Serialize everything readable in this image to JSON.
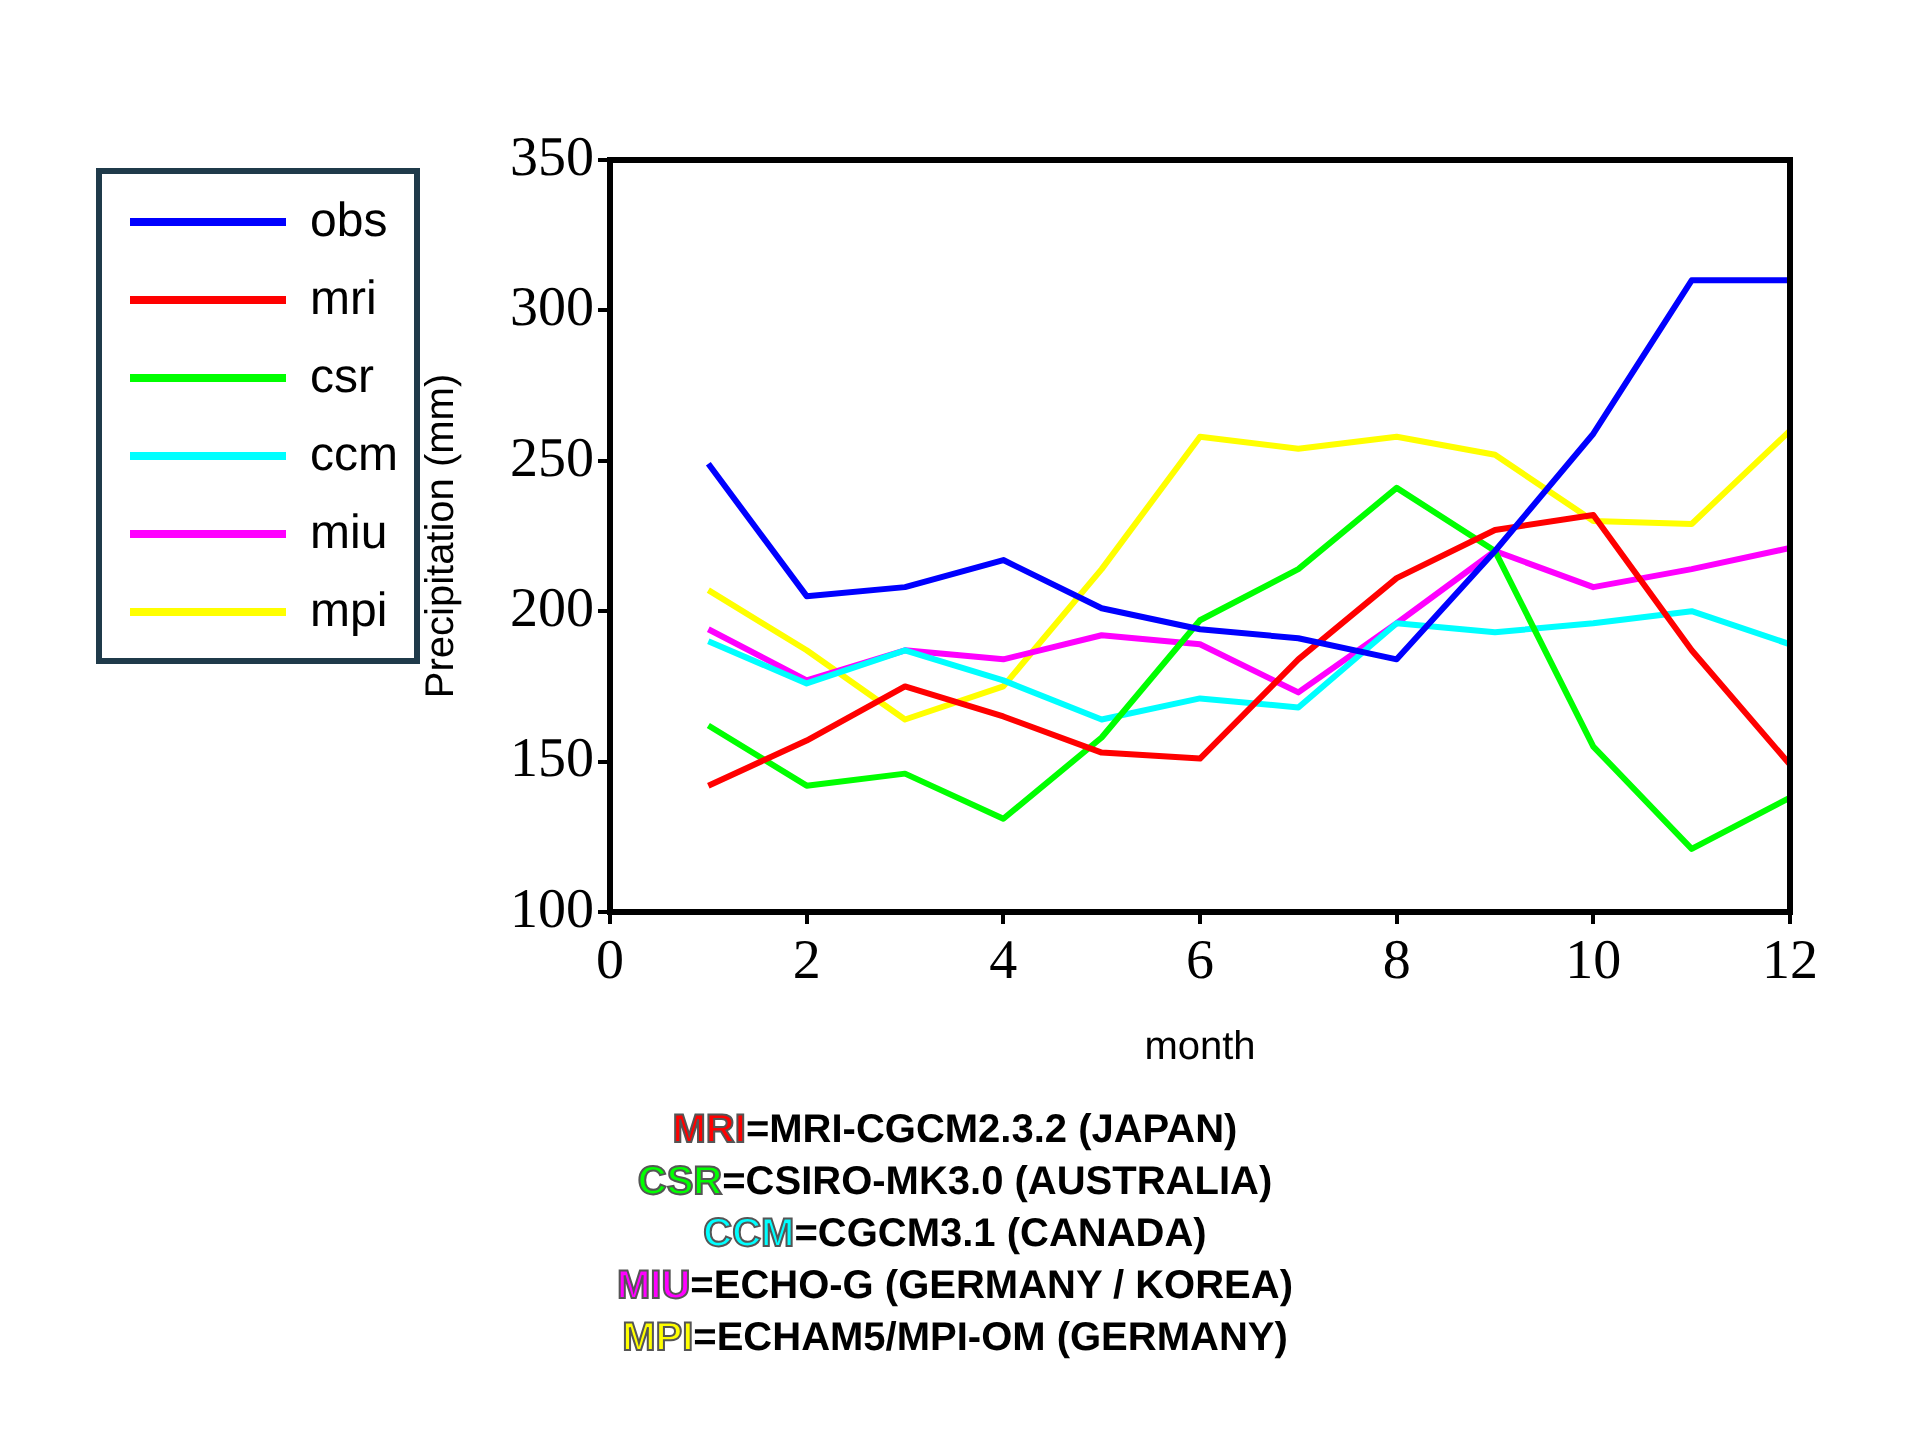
{
  "chart_data": {
    "type": "line",
    "xlabel": "month",
    "ylabel": "Precipitation (mm)",
    "x": [
      1,
      2,
      3,
      4,
      5,
      6,
      7,
      8,
      9,
      10,
      11,
      12
    ],
    "xlim": [
      0,
      12
    ],
    "xticks": [
      0,
      2,
      4,
      6,
      8,
      10,
      12
    ],
    "ylim": [
      100,
      350
    ],
    "yticks": [
      100,
      150,
      200,
      250,
      300,
      350
    ],
    "legend": "top left",
    "marker": "none",
    "line_style": "solid",
    "series": [
      {
        "name": "obs",
        "color": "#0000ff",
        "values": [
          249,
          205,
          208,
          217,
          201,
          194,
          191,
          184,
          220,
          259,
          310,
          310
        ]
      },
      {
        "name": "mri",
        "color": "#ff0000",
        "values": [
          142,
          157,
          175,
          165,
          153,
          151,
          184,
          211,
          227,
          232,
          187,
          149
        ]
      },
      {
        "name": "csr",
        "color": "#00ff00",
        "values": [
          162,
          142,
          146,
          131,
          158,
          197,
          214,
          241,
          220,
          155,
          121,
          138
        ]
      },
      {
        "name": "ccm",
        "color": "#00ffff",
        "values": [
          190,
          176,
          187,
          177,
          164,
          171,
          168,
          196,
          193,
          196,
          200,
          189
        ]
      },
      {
        "name": "miu",
        "color": "#ff00ff",
        "values": [
          194,
          177,
          187,
          184,
          192,
          189,
          173,
          196,
          220,
          208,
          214,
          221
        ]
      },
      {
        "name": "mpi",
        "color": "#ffff00",
        "values": [
          207,
          187,
          164,
          175,
          214,
          258,
          254,
          258,
          252,
          230,
          229,
          260
        ]
      }
    ],
    "annotations": [
      "MRI=MRI-CGCM2.3.2 (JAPAN)",
      "CSR=CSIRO-MK3.0 (AUSTRALIA)",
      "CCM=CGCM3.1 (CANADA)",
      "MIU=ECHO-G (GERMANY / KOREA)",
      "MPI=ECHAM5/MPI-OM (GERMANY)"
    ]
  }
}
